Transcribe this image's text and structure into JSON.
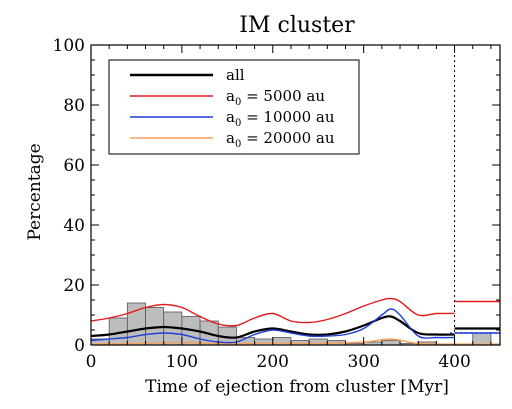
{
  "chart_data": {
    "type": "line",
    "title": "IM cluster",
    "xlabel": "Time of ejection from cluster [Myr]",
    "ylabel": "Percentage",
    "xlim": [
      0,
      450
    ],
    "ylim": [
      0,
      100
    ],
    "xticks": [
      0,
      100,
      200,
      300,
      400
    ],
    "yticks": [
      0,
      20,
      40,
      60,
      80,
      100
    ],
    "grid": false,
    "legend_position": "top-left",
    "vertical_line_x": 400,
    "histogram": {
      "bin_width": 20,
      "bins": [
        {
          "x0": 0,
          "value": 2
        },
        {
          "x0": 20,
          "value": 9
        },
        {
          "x0": 40,
          "value": 14
        },
        {
          "x0": 60,
          "value": 12.5
        },
        {
          "x0": 80,
          "value": 11
        },
        {
          "x0": 100,
          "value": 9.5
        },
        {
          "x0": 120,
          "value": 8
        },
        {
          "x0": 140,
          "value": 6
        },
        {
          "x0": 160,
          "value": 2.5
        },
        {
          "x0": 180,
          "value": 2
        },
        {
          "x0": 200,
          "value": 2.5
        },
        {
          "x0": 220,
          "value": 1.5
        },
        {
          "x0": 240,
          "value": 2
        },
        {
          "x0": 260,
          "value": 1.5
        },
        {
          "x0": 280,
          "value": 0.5
        },
        {
          "x0": 300,
          "value": 1
        },
        {
          "x0": 320,
          "value": 1.5
        },
        {
          "x0": 340,
          "value": 0.5
        },
        {
          "x0": 360,
          "value": 1
        },
        {
          "x0": 420,
          "value": 4
        }
      ]
    },
    "series": [
      {
        "name": "all",
        "color": "#000000",
        "x": [
          0,
          20,
          40,
          60,
          80,
          100,
          120,
          140,
          160,
          180,
          200,
          220,
          240,
          260,
          280,
          300,
          320,
          330,
          340,
          360,
          380,
          400
        ],
        "values": [
          3,
          3.5,
          4.5,
          5.5,
          6,
          5.5,
          4.5,
          3,
          2.5,
          4.5,
          5.5,
          4.5,
          3.5,
          3.5,
          4.5,
          6.5,
          9,
          9.5,
          8,
          4,
          3.5,
          3.5
        ],
        "after_400": 5.5
      },
      {
        "name": "a0 = 5000 au",
        "color": "#e41a1c",
        "x": [
          0,
          20,
          40,
          60,
          80,
          100,
          120,
          140,
          160,
          180,
          200,
          220,
          240,
          260,
          280,
          300,
          320,
          330,
          340,
          360,
          380,
          400
        ],
        "values": [
          8,
          9,
          10.5,
          12.5,
          13.5,
          12.5,
          9.5,
          7,
          6.5,
          9,
          10.5,
          8,
          7.5,
          8.5,
          10.5,
          13,
          15,
          15.5,
          14.5,
          10,
          10.5,
          10.5
        ],
        "after_400": 14.5
      },
      {
        "name": "a0 = 10000 au",
        "color": "#1f3fd8",
        "x": [
          0,
          20,
          40,
          60,
          80,
          100,
          120,
          140,
          160,
          180,
          200,
          220,
          240,
          260,
          280,
          300,
          320,
          330,
          340,
          360,
          380,
          400
        ],
        "values": [
          1.5,
          2,
          2.5,
          3.5,
          4,
          3.5,
          2,
          1,
          1,
          3.5,
          5,
          4,
          3,
          3,
          3.5,
          5.5,
          10,
          12,
          10,
          3,
          2.5,
          2.5
        ],
        "after_400": 4
      },
      {
        "name": "a0 = 20000 au",
        "color": "#f5a25d",
        "x": [
          0,
          50,
          100,
          150,
          200,
          250,
          300,
          330,
          360,
          400
        ],
        "values": [
          0.3,
          0.5,
          0.8,
          0.4,
          0.6,
          0.5,
          1,
          2,
          0.5,
          0.3
        ],
        "after_400": 0.3
      }
    ],
    "legend": [
      {
        "base": "all",
        "sub": "",
        "rest": "",
        "color": "#000000"
      },
      {
        "base": "a",
        "sub": "0",
        "rest": " =  5000 au",
        "color": "#e41a1c"
      },
      {
        "base": "a",
        "sub": "0",
        "rest": " = 10000 au",
        "color": "#1f3fd8"
      },
      {
        "base": "a",
        "sub": "0",
        "rest": " = 20000 au",
        "color": "#f5a25d"
      }
    ]
  }
}
